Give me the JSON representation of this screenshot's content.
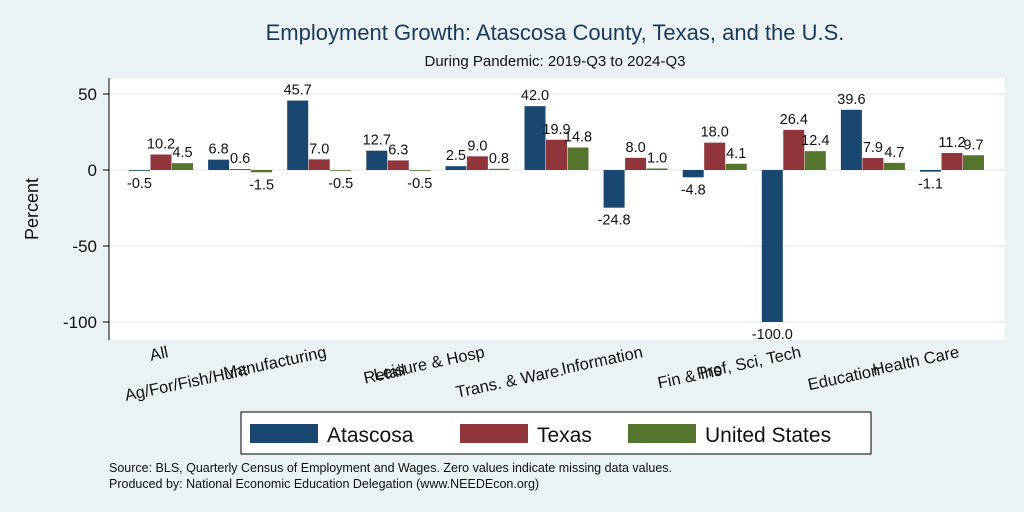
{
  "chart_data": {
    "type": "bar",
    "title": "Employment Growth: Atascosa County, Texas, and the U.S.",
    "subtitle": "During Pandemic: 2019-Q3 to 2024-Q3",
    "ylabel": "Percent",
    "xlabel": "",
    "ylim": [
      -110,
      55
    ],
    "yticks": [
      50,
      0,
      -50,
      -100
    ],
    "grid": true,
    "legend_position": "bottom",
    "categories": [
      "All",
      "Ag/For/Fish/Hunt",
      "Manufacturing",
      "Retail",
      "Leisure & Hosp",
      "Trans. & Ware.",
      "Information",
      "Fin & Ins",
      "Prof, Sci, Tech",
      "Education",
      "Health Care"
    ],
    "series": [
      {
        "name": "Atascosa",
        "color": "#1a476f",
        "values": [
          -0.5,
          6.8,
          45.7,
          12.7,
          2.5,
          42.0,
          -24.8,
          -4.8,
          -100.0,
          39.6,
          -1.1
        ]
      },
      {
        "name": "Texas",
        "color": "#90353b",
        "values": [
          10.2,
          0.6,
          7.0,
          6.3,
          9.0,
          19.9,
          8.0,
          18.0,
          26.4,
          7.9,
          11.2
        ]
      },
      {
        "name": "United States",
        "color": "#55752f",
        "values": [
          4.5,
          -1.5,
          -0.5,
          -0.5,
          0.8,
          14.8,
          1.0,
          4.1,
          12.4,
          4.7,
          9.7
        ]
      }
    ],
    "value_labels": [
      [
        "-0.5",
        "6.8",
        "45.7",
        "12.7",
        "2.5",
        "42.0",
        "-24.8",
        "-4.8",
        "-100.0",
        "39.6",
        "-1.1"
      ],
      [
        "10.2",
        "0.6",
        "7.0",
        "6.3",
        "9.0",
        "19.9",
        "8.0",
        "18.0",
        "26.4",
        "7.9",
        "11.2"
      ],
      [
        "4.5",
        "-1.5",
        "-0.5",
        "-0.5",
        "0.8",
        "14.8",
        "1.0",
        "4.1",
        "12.4",
        "4.7",
        "9.7"
      ]
    ],
    "source_lines": [
      "Source: BLS, Quarterly Census of Employment and Wages. Zero values indicate missing data values.",
      "Produced by: National Economic Education Delegation (www.NEEDEcon.org)"
    ]
  }
}
